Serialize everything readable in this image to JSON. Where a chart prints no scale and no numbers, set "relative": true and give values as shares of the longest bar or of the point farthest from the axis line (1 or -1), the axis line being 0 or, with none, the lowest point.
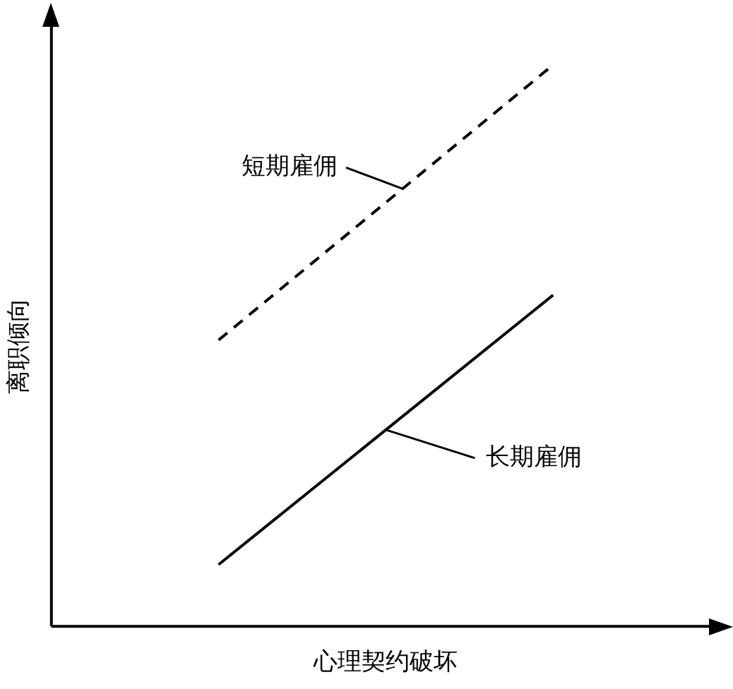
{
  "chart_data": {
    "type": "line",
    "xlabel": "心理契约破坏",
    "ylabel": "离职倾向",
    "relative": true,
    "categories": [
      null,
      null
    ],
    "series": [
      {
        "name": "短期雇佣",
        "color": "#000000",
        "line_style": "dashed",
        "values": [
          0.51,
          1
        ]
      },
      {
        "name": "长期雇佣",
        "color": "#000000",
        "line_style": "solid",
        "values": [
          0.11,
          0.59
        ]
      }
    ],
    "grid": false,
    "marker": "none"
  }
}
